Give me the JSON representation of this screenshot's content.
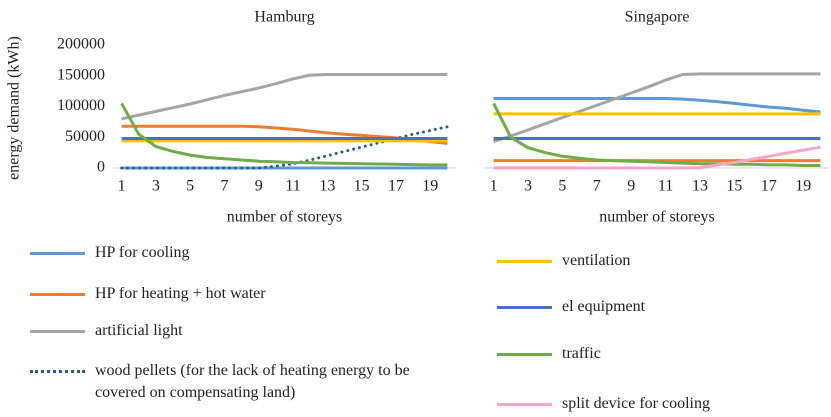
{
  "chart_data": [
    {
      "type": "line",
      "title": "Hamburg",
      "ylabel": "energy demand (kWh)",
      "xlabel": "number of storeys",
      "x": [
        1,
        2,
        3,
        4,
        5,
        6,
        7,
        8,
        9,
        10,
        11,
        12,
        13,
        14,
        15,
        16,
        17,
        18,
        19,
        20
      ],
      "xlim": [
        0.5,
        20.5
      ],
      "xticks": [
        1,
        3,
        5,
        7,
        9,
        11,
        13,
        15,
        17,
        19
      ],
      "ylim": [
        0,
        200000
      ],
      "yticks": [
        0,
        50000,
        100000,
        150000,
        200000
      ],
      "series": [
        {
          "name": "HP for cooling",
          "color": "#5b9bd5",
          "values": [
            0,
            0,
            0,
            0,
            0,
            0,
            0,
            0,
            0,
            0,
            0,
            0,
            0,
            0,
            0,
            0,
            0,
            0,
            0,
            0
          ]
        },
        {
          "name": "HP for heating + hot water",
          "color": "#ed7d31",
          "values": [
            68000,
            68000,
            68000,
            68000,
            68000,
            68000,
            68000,
            68000,
            67000,
            65000,
            63000,
            60000,
            57000,
            55000,
            53000,
            51000,
            49000,
            46000,
            43000,
            40000
          ]
        },
        {
          "name": "artificial light",
          "color": "#a5a5a5",
          "values": [
            80000,
            86000,
            92000,
            98000,
            104000,
            111000,
            118000,
            124000,
            130000,
            137000,
            145000,
            151000,
            152000,
            152000,
            152000,
            152000,
            152000,
            152000,
            152000,
            152000
          ]
        },
        {
          "name": "wood pellets (for the lack of heating energy to be covered on compensating land)",
          "color": "#255e91",
          "style": "dotted",
          "values": [
            0,
            0,
            0,
            0,
            0,
            0,
            0,
            0,
            0,
            3000,
            7000,
            13000,
            20000,
            27000,
            34000,
            41000,
            48000,
            55000,
            61000,
            67000
          ]
        },
        {
          "name": "ventilation",
          "color": "#ffc000",
          "values": [
            44000,
            44000,
            44000,
            44000,
            44000,
            44000,
            44000,
            44000,
            44000,
            44000,
            44000,
            44000,
            44000,
            44000,
            44000,
            44000,
            44000,
            44000,
            44000,
            44000
          ]
        },
        {
          "name": "el equipment",
          "color": "#4472c4",
          "values": [
            48000,
            48000,
            48000,
            48000,
            48000,
            48000,
            48000,
            48000,
            48000,
            48000,
            48000,
            48000,
            48000,
            48000,
            48000,
            48000,
            48000,
            48000,
            48000,
            48000
          ]
        },
        {
          "name": "traffic",
          "color": "#70ad47",
          "values": [
            105000,
            55000,
            35000,
            27000,
            21000,
            17000,
            15000,
            13000,
            11000,
            10000,
            9000,
            8500,
            8000,
            7500,
            7000,
            6500,
            6000,
            5500,
            5000,
            5000
          ]
        }
      ]
    },
    {
      "type": "line",
      "title": "Singapore",
      "xlabel": "number of storeys",
      "x": [
        1,
        2,
        3,
        4,
        5,
        6,
        7,
        8,
        9,
        10,
        11,
        12,
        13,
        14,
        15,
        16,
        17,
        18,
        19,
        20
      ],
      "xlim": [
        0.5,
        20.5
      ],
      "xticks": [
        1,
        3,
        5,
        7,
        9,
        11,
        13,
        15,
        17,
        19
      ],
      "ylim": [
        0,
        200000
      ],
      "series": [
        {
          "name": "HP for cooling",
          "color": "#5b9bd5",
          "values": [
            113000,
            113000,
            113000,
            113000,
            113000,
            113000,
            113000,
            113000,
            113000,
            113000,
            113000,
            112000,
            110000,
            108000,
            105000,
            102000,
            99000,
            97000,
            94000,
            91000
          ]
        },
        {
          "name": "HP for heating + hot water",
          "color": "#ed7d31",
          "values": [
            12000,
            12000,
            12000,
            12000,
            12000,
            12000,
            12000,
            12000,
            12000,
            12000,
            12000,
            12000,
            12000,
            12000,
            12000,
            12000,
            12000,
            12000,
            12000,
            12000
          ]
        },
        {
          "name": "artificial light",
          "color": "#a5a5a5",
          "values": [
            43000,
            52000,
            62000,
            72000,
            82000,
            92000,
            102000,
            112000,
            122000,
            132000,
            143000,
            152000,
            153000,
            153000,
            153000,
            153000,
            153000,
            153000,
            153000,
            153000
          ]
        },
        {
          "name": "ventilation",
          "color": "#ffc000",
          "values": [
            88000,
            88000,
            88000,
            88000,
            88000,
            88000,
            88000,
            88000,
            88000,
            88000,
            88000,
            88000,
            88000,
            88000,
            88000,
            88000,
            88000,
            88000,
            88000,
            88000
          ]
        },
        {
          "name": "el equipment",
          "color": "#4472c4",
          "values": [
            48000,
            48000,
            48000,
            48000,
            48000,
            48000,
            48000,
            48000,
            48000,
            48000,
            48000,
            48000,
            48000,
            48000,
            48000,
            48000,
            48000,
            48000,
            48000,
            48000
          ]
        },
        {
          "name": "traffic",
          "color": "#70ad47",
          "values": [
            105000,
            50000,
            33000,
            25000,
            19000,
            16000,
            13000,
            12000,
            11000,
            10000,
            9000,
            8000,
            7000,
            7000,
            6000,
            6000,
            5000,
            5000,
            4000,
            4000
          ]
        },
        {
          "name": "split device for cooling",
          "color": "#f4a6c9",
          "values": [
            0,
            0,
            0,
            0,
            0,
            0,
            0,
            0,
            0,
            0,
            0,
            0,
            0,
            5000,
            9000,
            14000,
            19000,
            24000,
            29000,
            34000
          ]
        }
      ]
    }
  ]
}
